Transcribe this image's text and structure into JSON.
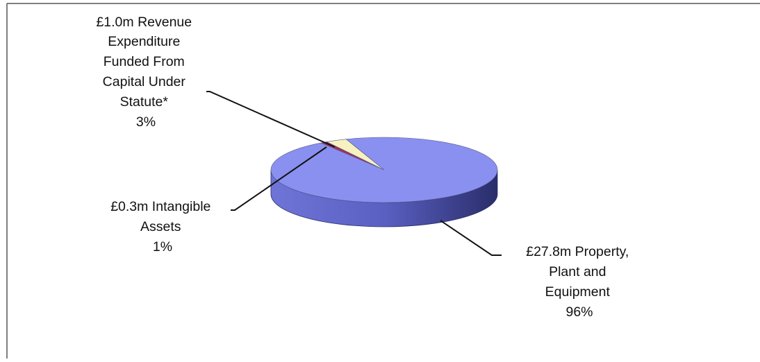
{
  "chart_data": {
    "type": "pie",
    "style": "3d",
    "title": "",
    "slices": [
      {
        "name": "Property, Plant and Equipment",
        "amount": 27.8,
        "percent": 96,
        "color": "#8a90f0",
        "label_lines": [
          "£27.8m Property,",
          "Plant and",
          "Equipment",
          "96%"
        ]
      },
      {
        "name": "Revenue Expenditure Funded From Capital Under Statute",
        "amount": 1.0,
        "percent": 3,
        "color": "#f5f2c0",
        "label_lines": [
          "£1.0m Revenue",
          "Expenditure",
          "Funded From",
          "Capital Under",
          "Statute*",
          "3%"
        ]
      },
      {
        "name": "Intangible Assets",
        "amount": 0.3,
        "percent": 1,
        "color": "#a0305a",
        "label_lines": [
          "£0.3m Intangible",
          "Assets",
          "1%"
        ]
      }
    ],
    "units": "£m",
    "legend": "none",
    "labels": "callouts with leader lines"
  }
}
